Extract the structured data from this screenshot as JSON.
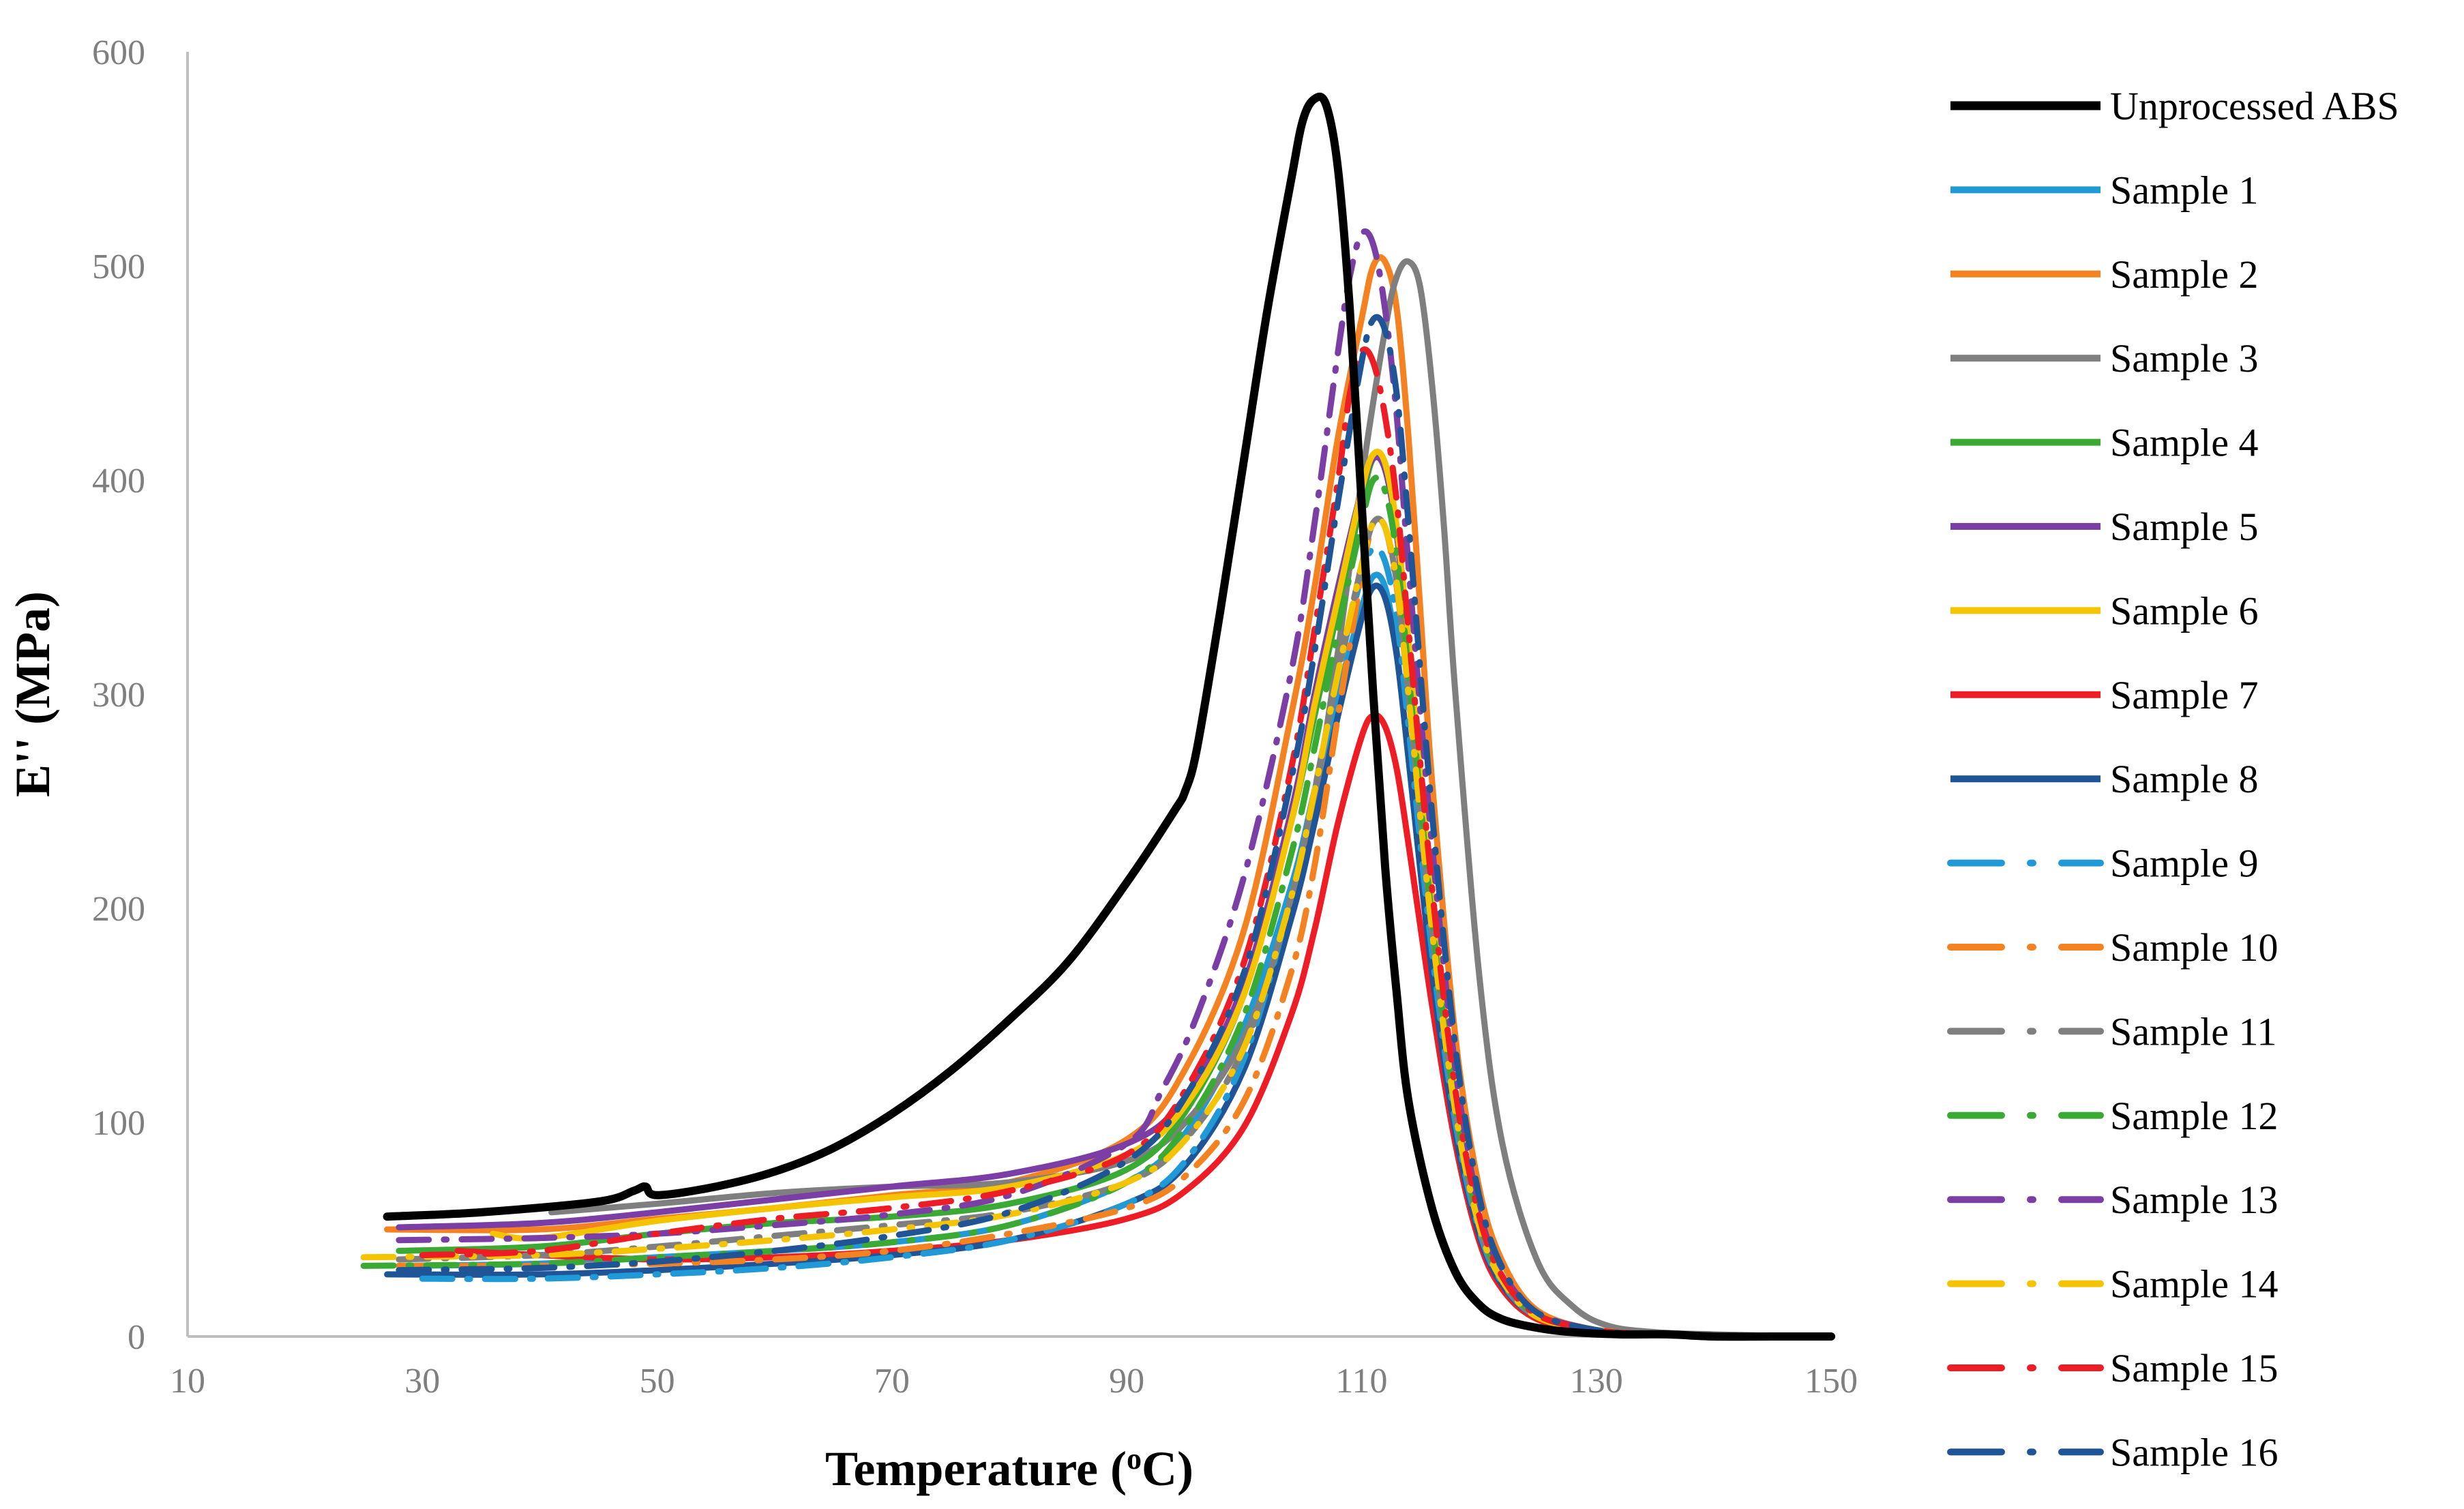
{
  "chart_data": {
    "type": "line",
    "title": "",
    "xlabel": "Temperature (",
    "xlabel_sup": "o",
    "xlabel_unit": "C)",
    "ylabel": "E'' (MPa)",
    "xlim": [
      10,
      150
    ],
    "ylim": [
      0,
      600
    ],
    "xticks": [
      10,
      30,
      50,
      70,
      90,
      110,
      130,
      150
    ],
    "yticks": [
      0,
      100,
      200,
      300,
      400,
      500,
      600
    ],
    "grid": false,
    "legend_position": "right",
    "series": [
      {
        "name": "Unprocessed ABS",
        "color": "#000000",
        "dash": "solid",
        "x": [
          27,
          35,
          45,
          48,
          49,
          50,
          55,
          60,
          65,
          70,
          75,
          80,
          85,
          90,
          94,
          95,
          96,
          98,
          100,
          102,
          104,
          105,
          106,
          107,
          108,
          109,
          110,
          111,
          112,
          113,
          114,
          116,
          118,
          120,
          122,
          125,
          128,
          132,
          136,
          140,
          145,
          150
        ],
        "y": [
          56,
          58,
          63,
          68,
          70,
          66,
          70,
          77,
          88,
          104,
          124,
          148,
          175,
          212,
          245,
          255,
          275,
          340,
          410,
          480,
          540,
          568,
          578,
          575,
          545,
          480,
          390,
          300,
          220,
          160,
          110,
          60,
          30,
          15,
          8,
          4,
          2,
          1,
          1,
          0,
          0,
          0
        ]
      },
      {
        "name": "Sample 1",
        "color": "#1f9ad6",
        "dash": "solid",
        "x": [
          28,
          40,
          50,
          60,
          70,
          80,
          90,
          95,
          100,
          104,
          106,
          108,
          110,
          111,
          112,
          113,
          114,
          116,
          118,
          120,
          122,
          125,
          130,
          135,
          140,
          148
        ],
        "y": [
          33,
          34,
          37,
          40,
          44,
          52,
          72,
          95,
          145,
          210,
          255,
          300,
          340,
          355,
          350,
          320,
          270,
          170,
          95,
          50,
          25,
          10,
          3,
          1,
          0,
          0
        ]
      },
      {
        "name": "Sample 2",
        "color": "#f58220",
        "dash": "solid",
        "x": [
          27,
          40,
          50,
          60,
          70,
          80,
          90,
          95,
          100,
          104,
          106,
          108,
          110,
          111,
          112,
          113,
          114,
          115,
          116,
          118,
          120,
          122,
          125,
          130,
          135,
          140,
          148
        ],
        "y": [
          50,
          50,
          55,
          60,
          66,
          72,
          92,
          125,
          190,
          290,
          350,
          420,
          475,
          500,
          502,
          480,
          420,
          340,
          260,
          140,
          70,
          35,
          12,
          3,
          1,
          0,
          0
        ]
      },
      {
        "name": "Sample 3",
        "color": "#7f7f7f",
        "dash": "solid",
        "x": [
          41,
          50,
          60,
          70,
          80,
          90,
          95,
          100,
          104,
          106,
          108,
          110,
          112,
          113,
          114,
          115,
          116,
          117,
          118,
          120,
          122,
          125,
          128,
          131,
          135,
          140,
          148
        ],
        "y": [
          58,
          62,
          67,
          70,
          72,
          82,
          100,
          140,
          200,
          250,
          320,
          400,
          470,
          495,
          502,
          490,
          445,
          380,
          300,
          170,
          90,
          35,
          14,
          5,
          2,
          1,
          0
        ]
      },
      {
        "name": "Sample 4",
        "color": "#3aaa35",
        "dash": "solid",
        "x": [
          28,
          40,
          50,
          60,
          70,
          80,
          90,
          95,
          100,
          104,
          106,
          108,
          110,
          111,
          112,
          113,
          114,
          116,
          118,
          120,
          122,
          125,
          130,
          135,
          140,
          148
        ],
        "y": [
          40,
          42,
          48,
          53,
          56,
          62,
          78,
          105,
          160,
          240,
          290,
          340,
          390,
          410,
          405,
          375,
          320,
          200,
          110,
          55,
          28,
          10,
          3,
          1,
          0,
          0
        ]
      },
      {
        "name": "Sample 5",
        "color": "#7b3ea5",
        "dash": "solid",
        "x": [
          28,
          40,
          50,
          60,
          70,
          80,
          90,
          95,
          100,
          104,
          106,
          108,
          110,
          111,
          112,
          113,
          114,
          116,
          118,
          120,
          122,
          125,
          130,
          135,
          140,
          148
        ],
        "y": [
          51,
          53,
          58,
          64,
          70,
          76,
          90,
          112,
          165,
          245,
          300,
          350,
          395,
          410,
          405,
          375,
          320,
          200,
          110,
          55,
          28,
          10,
          3,
          1,
          0,
          0
        ]
      },
      {
        "name": "Sample 6",
        "color": "#f5c400",
        "dash": "solid",
        "x": [
          36,
          40,
          50,
          60,
          70,
          80,
          90,
          95,
          100,
          104,
          106,
          108,
          110,
          111,
          112,
          113,
          114,
          116,
          118,
          120,
          122,
          125,
          130,
          135,
          140,
          148
        ],
        "y": [
          48,
          46,
          54,
          60,
          65,
          70,
          85,
          108,
          160,
          240,
          295,
          345,
          395,
          412,
          408,
          378,
          325,
          205,
          112,
          56,
          28,
          10,
          3,
          1,
          0,
          0
        ]
      },
      {
        "name": "Sample 7",
        "color": "#ee1c25",
        "dash": "solid",
        "x": [
          33,
          40,
          50,
          60,
          70,
          80,
          90,
          95,
          100,
          104,
          106,
          108,
          110,
          111,
          112,
          113,
          114,
          116,
          118,
          120,
          122,
          125,
          130,
          135,
          140,
          148
        ],
        "y": [
          40,
          38,
          36,
          37,
          40,
          45,
          55,
          68,
          98,
          150,
          190,
          240,
          280,
          290,
          285,
          265,
          230,
          155,
          90,
          45,
          22,
          8,
          2,
          1,
          0,
          0
        ]
      },
      {
        "name": "Sample 8",
        "color": "#1f5597",
        "dash": "solid",
        "x": [
          27,
          40,
          50,
          60,
          70,
          80,
          90,
          95,
          100,
          104,
          106,
          108,
          110,
          111,
          112,
          113,
          114,
          116,
          118,
          120,
          122,
          125,
          130,
          135,
          140,
          148
        ],
        "y": [
          29,
          29,
          31,
          34,
          38,
          45,
          62,
          80,
          125,
          195,
          240,
          290,
          335,
          350,
          345,
          318,
          270,
          170,
          95,
          48,
          24,
          9,
          3,
          1,
          0,
          0
        ]
      },
      {
        "name": "Sample 9",
        "color": "#1f9ad6",
        "dash": "dashdot",
        "x": [
          30,
          40,
          50,
          60,
          70,
          80,
          90,
          95,
          100,
          104,
          106,
          108,
          110,
          111,
          112,
          113,
          114,
          116,
          118,
          120,
          122,
          125,
          130,
          135,
          140,
          148
        ],
        "y": [
          27,
          27,
          29,
          32,
          37,
          45,
          62,
          82,
          130,
          205,
          255,
          310,
          355,
          368,
          362,
          335,
          285,
          180,
          100,
          50,
          25,
          9,
          3,
          1,
          0,
          0
        ]
      },
      {
        "name": "Sample 10",
        "color": "#f58220",
        "dash": "dashdot",
        "x": [
          28,
          40,
          50,
          60,
          70,
          80,
          90,
          95,
          100,
          104,
          106,
          108,
          110,
          111,
          112,
          113,
          114,
          116,
          118,
          120,
          122,
          125,
          130,
          135,
          140,
          148
        ],
        "y": [
          33,
          33,
          34,
          36,
          40,
          48,
          60,
          75,
          110,
          170,
          220,
          290,
          355,
          380,
          378,
          350,
          300,
          190,
          105,
          52,
          26,
          9,
          3,
          1,
          0,
          0
        ]
      },
      {
        "name": "Sample 11",
        "color": "#7f7f7f",
        "dash": "dashdot",
        "x": [
          28,
          40,
          50,
          60,
          70,
          80,
          90,
          95,
          100,
          104,
          106,
          108,
          110,
          111,
          112,
          113,
          114,
          116,
          118,
          120,
          122,
          125,
          130,
          135,
          140,
          148
        ],
        "y": [
          36,
          38,
          42,
          47,
          52,
          58,
          72,
          92,
          135,
          205,
          255,
          310,
          360,
          380,
          378,
          352,
          300,
          190,
          105,
          52,
          26,
          9,
          3,
          1,
          0,
          0
        ]
      },
      {
        "name": "Sample 12",
        "color": "#3aaa35",
        "dash": "dashdot",
        "x": [
          25,
          40,
          50,
          60,
          70,
          80,
          90,
          95,
          100,
          104,
          106,
          108,
          110,
          111,
          112,
          113,
          114,
          116,
          118,
          120,
          122,
          125,
          130,
          135,
          140,
          148
        ],
        "y": [
          33,
          34,
          37,
          40,
          44,
          52,
          72,
          98,
          150,
          225,
          275,
          330,
          380,
          400,
          395,
          365,
          310,
          195,
          108,
          54,
          27,
          10,
          3,
          1,
          0,
          0
        ]
      },
      {
        "name": "Sample 13",
        "color": "#7b3ea5",
        "dash": "dashdot",
        "x": [
          28,
          40,
          50,
          60,
          70,
          80,
          90,
          93,
          96,
          100,
          104,
          106,
          108,
          109,
          110,
          111,
          112,
          113,
          114,
          116,
          118,
          120,
          122,
          125,
          130,
          135,
          140,
          148
        ],
        "y": [
          45,
          46,
          48,
          52,
          57,
          66,
          90,
          115,
          150,
          215,
          310,
          380,
          460,
          495,
          515,
          510,
          480,
          430,
          360,
          230,
          125,
          60,
          30,
          11,
          3,
          1,
          0,
          0
        ]
      },
      {
        "name": "Sample 14",
        "color": "#f5c400",
        "dash": "dashdot",
        "x": [
          25,
          40,
          50,
          60,
          70,
          80,
          90,
          95,
          100,
          104,
          106,
          108,
          110,
          111,
          112,
          113,
          114,
          116,
          118,
          120,
          122,
          125,
          130,
          135,
          140,
          148
        ],
        "y": [
          37,
          38,
          41,
          45,
          50,
          57,
          72,
          92,
          135,
          205,
          255,
          310,
          360,
          380,
          378,
          352,
          300,
          190,
          105,
          52,
          26,
          9,
          3,
          1,
          0,
          0
        ]
      },
      {
        "name": "Sample 15",
        "color": "#ee1c25",
        "dash": "dashdot",
        "x": [
          30,
          40,
          50,
          60,
          70,
          80,
          90,
          95,
          100,
          104,
          106,
          108,
          109,
          110,
          111,
          112,
          113,
          114,
          116,
          118,
          120,
          122,
          125,
          130,
          135,
          140,
          148
        ],
        "y": [
          38,
          40,
          48,
          55,
          60,
          68,
          85,
          115,
          175,
          265,
          330,
          400,
          440,
          460,
          455,
          430,
          390,
          330,
          210,
          115,
          57,
          28,
          10,
          3,
          1,
          0,
          0
        ]
      },
      {
        "name": "Sample 16",
        "color": "#1f5597",
        "dash": "dashdot",
        "x": [
          28,
          40,
          50,
          60,
          70,
          80,
          90,
          95,
          100,
          104,
          106,
          108,
          110,
          111,
          112,
          113,
          114,
          116,
          118,
          120,
          122,
          125,
          130,
          135,
          140,
          148
        ],
        "y": [
          31,
          32,
          35,
          40,
          47,
          58,
          82,
          112,
          170,
          260,
          320,
          390,
          455,
          475,
          470,
          440,
          380,
          245,
          135,
          66,
          32,
          11,
          3,
          1,
          0,
          0
        ]
      }
    ]
  }
}
